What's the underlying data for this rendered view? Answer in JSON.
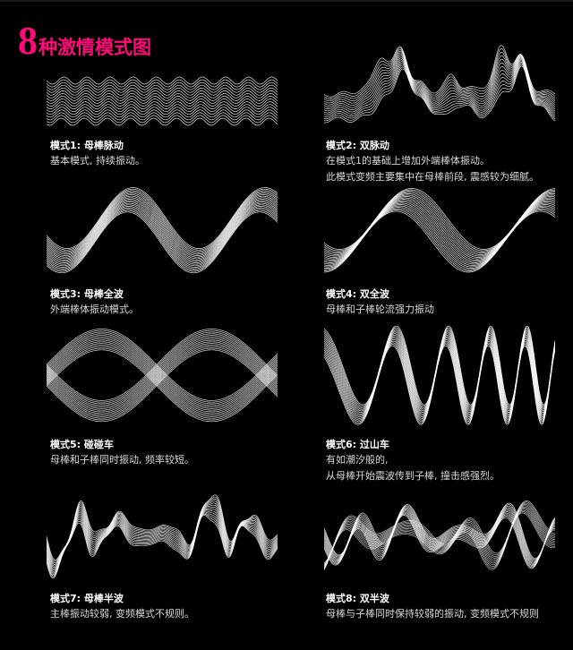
{
  "header": {
    "number": "8",
    "title": "种激情模式图"
  },
  "colors": {
    "accent": "#ff0a78",
    "line": "#ffffff",
    "background": "#000000"
  },
  "modes": [
    {
      "title": "模式1: 母棒脉动",
      "desc": [
        "基本模式, 持续振动。"
      ]
    },
    {
      "title": "模式2:  双脉动",
      "desc": [
        "在模式1的基础上增加外端棒体振动。",
        "此模式变频主要集中在母棒前段, 震感较为细腻。"
      ]
    },
    {
      "title": "模式3: 母棒全波",
      "desc": [
        "外端棒体振动模式。"
      ]
    },
    {
      "title": "模式4: 双全波",
      "desc": [
        "母棒和子棒轮流强力振动"
      ]
    },
    {
      "title": "模式5: 碰碰车",
      "desc": [
        "母棒和子棒同时振动, 频率较短。"
      ]
    },
    {
      "title": "模式6: 过山车",
      "desc": [
        "有如潮汐般的,",
        "从母棒开始震波传到子棒, 撞击感强烈。"
      ]
    },
    {
      "title": "模式7: 母棒半波",
      "desc": [
        "主棒振动较弱, 变频模式不规则。"
      ]
    },
    {
      "title": "模式8: 双半波",
      "desc": [
        "母棒与子棒同时保持较弱的振动, 变频模式不规则"
      ]
    }
  ]
}
